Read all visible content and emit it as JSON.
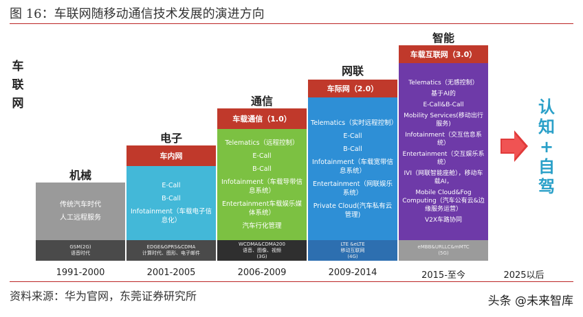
{
  "figure": {
    "title": "图 16：车联网随移动通信技术发展的演进方向",
    "y_label": [
      "车",
      "联",
      "网"
    ],
    "source": "资料来源：华为官网，东莞证券研究所",
    "watermark": "头条 @未来智库"
  },
  "colors": {
    "accent": "#c0392b",
    "mechanical": "#9a9a9a",
    "electronic": "#43b8d8",
    "communication": "#7cc142",
    "networked": "#2e8fd6",
    "intelligent": "#6e3aa8",
    "future_text": "#2aa0c8",
    "arrow": "#e03a3a"
  },
  "stages": [
    {
      "title": "机械",
      "header": "",
      "items": [
        "传统汽车时代",
        "人工远程服务"
      ],
      "network": [
        "GSM(2G)",
        "语音时代"
      ],
      "years": "1991-2000"
    },
    {
      "title": "电子",
      "header": "车内网",
      "items": [
        "E-Call",
        "B-Call",
        "Infotainment（车载电子信息化）"
      ],
      "network": [
        "EDGE&GPRS&CDMA",
        "计算时代、图形、电子邮件"
      ],
      "years": "2001-2005"
    },
    {
      "title": "通信",
      "header": "车载通信（1.0）",
      "items": [
        "Telematics（远程控制）",
        "E-Call",
        "B-Call",
        "Infotainment（车载导带信息系统）",
        "Entertainment车载娱乐媒体系统）",
        "汽车行化管理"
      ],
      "network": [
        "WCDMA&CDMA200",
        "语音、图像、视频",
        "(3G)"
      ],
      "years": "2006-2009"
    },
    {
      "title": "网联",
      "header": "车际网（2.0）",
      "items": [
        "Telematics（实时远程控制）",
        "E-Call",
        "B-Call",
        "Infotainment（车载宽带信息系统）",
        "Entertainment（网联娱乐系统）",
        "Private Cloud(汽车私有云管理)"
      ],
      "network": [
        "LTE &eLTE",
        "移动互联网",
        "(4G)"
      ],
      "years": "2009-2014"
    },
    {
      "title": "智能",
      "header": "车载互联网（3.0）",
      "items": [
        "Telematics（无感控制）",
        "基于AI的",
        "E-Call&B-Call",
        "Mobility Services(移动出行服务)",
        "Infotainment（交互信息系统）",
        "Entertainment（交互娱乐系统）",
        "IVI（网联智能座舱），移动车载AI，",
        "Mobile Cloud&Fog Computing（汽车公有云&边缘服务运营）",
        "V2X车路协同"
      ],
      "network": [
        "eMBB&URLLC&mMTC",
        "(5G)"
      ],
      "years": "2015-至今"
    }
  ],
  "future": {
    "years": "2025以后",
    "text": [
      "认",
      "知",
      "+",
      "自",
      "驾"
    ]
  }
}
